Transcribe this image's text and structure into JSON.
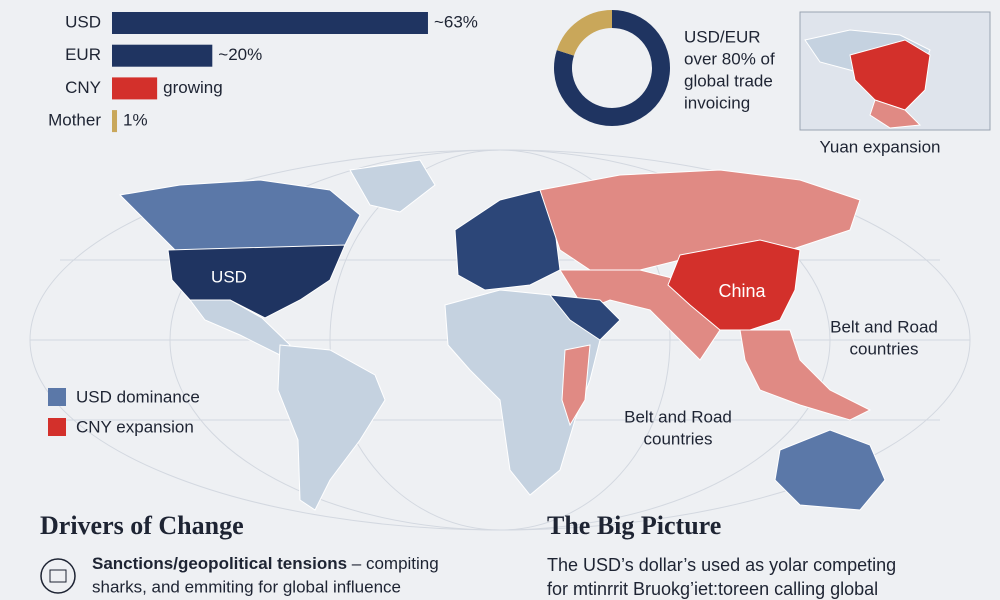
{
  "chart_data": [
    {
      "type": "bar",
      "orientation": "horizontal",
      "categories": [
        "USD",
        "EUR",
        "CNY",
        "Mother"
      ],
      "values": [
        63,
        20,
        9,
        1
      ],
      "value_labels": [
        "~63%",
        "~20%",
        "growing",
        "1%"
      ],
      "colors": [
        "#1f3461",
        "#1f3461",
        "#d3302b",
        "#c9a75a"
      ],
      "xlim": [
        0,
        65
      ]
    },
    {
      "type": "pie",
      "donut": true,
      "values": [
        80,
        20
      ],
      "colors": [
        "#1f3461",
        "#c9a75a"
      ],
      "annotation": [
        "USD/EUR",
        "over 80% of",
        "global trade",
        "invoicing"
      ]
    }
  ],
  "inset_map": {
    "caption": "Yuan expansion"
  },
  "map": {
    "labels": {
      "usd": "USD",
      "china": "China",
      "belt_road_east": [
        "Belt and Road",
        "countries"
      ],
      "belt_road_west": [
        "Belt and Road",
        "countries"
      ]
    },
    "legend": [
      {
        "name": "USD dominance",
        "color": "#5b78a8"
      },
      {
        "name": "CNY expansion",
        "color": "#d3302b"
      }
    ]
  },
  "drivers": {
    "title": "Drivers of Change",
    "lead": "Sanctions/geopolitical tensions",
    "lines": [
      " – compiting",
      "sharks, and emmiting for global influence"
    ]
  },
  "big_picture": {
    "title": "The Big Picture",
    "lines": [
      "The USD’s dollar’s used as yolar competing",
      "for mtinrrit Bruokg’iet:toreen calling global"
    ]
  }
}
